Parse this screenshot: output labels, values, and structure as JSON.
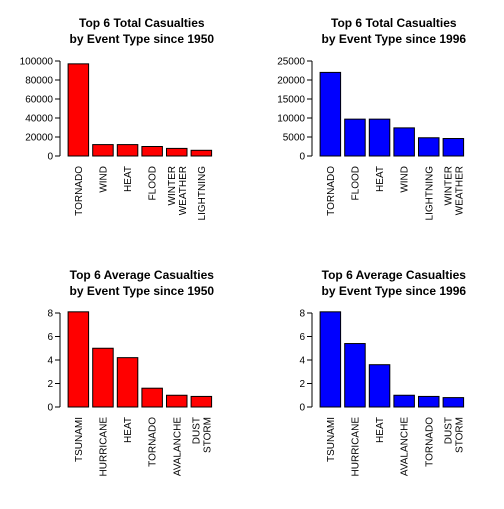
{
  "chart_data": [
    {
      "type": "bar",
      "title_lines": [
        "Top 6 Total Casualties",
        "by Event Type since 1950"
      ],
      "categories": [
        [
          "TORNADO"
        ],
        [
          "WIND"
        ],
        [
          "HEAT"
        ],
        [
          "FLOOD"
        ],
        [
          "WINTER",
          "WEATHER"
        ],
        [
          "LIGHTNING"
        ]
      ],
      "values": [
        97000,
        12000,
        12000,
        10000,
        8000,
        6000
      ],
      "ylim": [
        0,
        100000
      ],
      "yticks": [
        0,
        20000,
        40000,
        60000,
        80000,
        100000
      ],
      "color": "#ff0000",
      "grid": false
    },
    {
      "type": "bar",
      "title_lines": [
        "Top 6 Total Casualties",
        "by Event Type since 1996"
      ],
      "categories": [
        [
          "TORNADO"
        ],
        [
          "FLOOD"
        ],
        [
          "HEAT"
        ],
        [
          "WIND"
        ],
        [
          "LIGHTNING"
        ],
        [
          "WINTER",
          "WEATHER"
        ]
      ],
      "values": [
        22000,
        9700,
        9700,
        7400,
        4800,
        4600
      ],
      "ylim": [
        0,
        25000
      ],
      "yticks": [
        0,
        5000,
        10000,
        15000,
        20000,
        25000
      ],
      "color": "#0000ff",
      "grid": false
    },
    {
      "type": "bar",
      "title_lines": [
        "Top 6 Average Casualties",
        "by Event Type since 1950"
      ],
      "categories": [
        [
          "TSUNAMI"
        ],
        [
          "HURRICANE"
        ],
        [
          "HEAT"
        ],
        [
          "TORNADO"
        ],
        [
          "AVALANCHE"
        ],
        [
          "DUST",
          "STORM"
        ]
      ],
      "values": [
        8.1,
        5.0,
        4.2,
        1.6,
        1.0,
        0.9
      ],
      "ylim": [
        0,
        8
      ],
      "yticks": [
        0,
        2,
        4,
        6,
        8
      ],
      "color": "#ff0000",
      "grid": false
    },
    {
      "type": "bar",
      "title_lines": [
        "Top 6 Average Casualties",
        "by Event Type since 1996"
      ],
      "categories": [
        [
          "TSUNAMI"
        ],
        [
          "HURRICANE"
        ],
        [
          "HEAT"
        ],
        [
          "AVALANCHE"
        ],
        [
          "TORNADO"
        ],
        [
          "DUST",
          "STORM"
        ]
      ],
      "values": [
        8.1,
        5.4,
        3.6,
        1.0,
        0.9,
        0.8
      ],
      "ylim": [
        0,
        8
      ],
      "yticks": [
        0,
        2,
        4,
        6,
        8
      ],
      "color": "#0000ff",
      "grid": false
    }
  ]
}
